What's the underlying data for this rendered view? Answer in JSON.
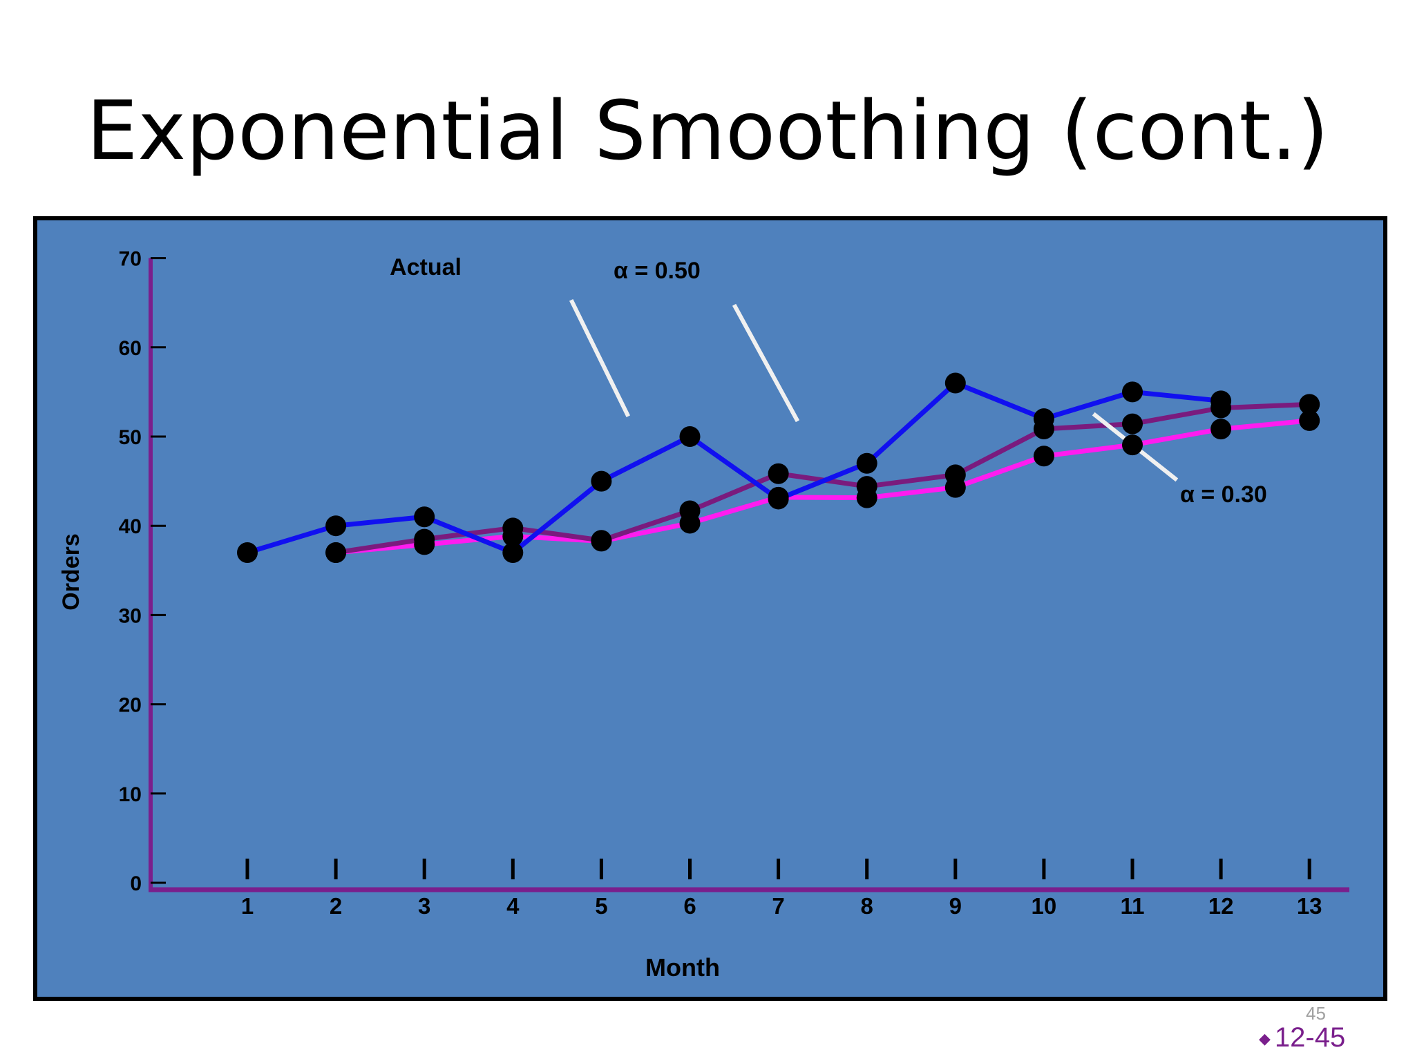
{
  "slide": {
    "title": "Exponential Smoothing (cont.)",
    "page_number": "45",
    "code": "12-45"
  },
  "colors": {
    "background": "#4f81bd",
    "frame": "#000000",
    "axis": "#7a1f8c",
    "actual": "#1010f0",
    "alpha_050": "#7a1b7e",
    "alpha_030": "#ff1cf0",
    "pointer": "#f0f0f0",
    "marker": "#000000"
  },
  "chart_data": {
    "type": "line",
    "title": "",
    "xlabel": "Month",
    "ylabel": "Orders",
    "xlim": [
      0,
      13
    ],
    "ylim": [
      0,
      70
    ],
    "x_ticks": [
      1,
      2,
      3,
      4,
      5,
      6,
      7,
      8,
      9,
      10,
      11,
      12,
      13
    ],
    "y_ticks": [
      0,
      10,
      20,
      30,
      40,
      50,
      60,
      70
    ],
    "grid": false,
    "series": [
      {
        "key": "actual",
        "x": [
          1,
          2,
          3,
          4,
          5,
          6,
          7,
          8,
          9,
          10,
          11,
          12
        ],
        "y": [
          37,
          40,
          41,
          37,
          45,
          50,
          43,
          47,
          56,
          52,
          55,
          54
        ]
      },
      {
        "key": "alpha_050",
        "x": [
          2,
          3,
          4,
          5,
          6,
          7,
          8,
          9,
          10,
          11,
          12,
          13
        ],
        "y": [
          37.0,
          38.5,
          39.75,
          38.37,
          41.68,
          45.84,
          44.42,
          45.71,
          50.85,
          51.42,
          53.21,
          53.61
        ]
      },
      {
        "key": "alpha_030",
        "x": [
          2,
          3,
          4,
          5,
          6,
          7,
          8,
          9,
          10,
          11,
          12,
          13
        ],
        "y": [
          37.0,
          37.9,
          38.83,
          38.28,
          40.29,
          43.2,
          43.14,
          44.3,
          47.81,
          49.06,
          50.84,
          51.79
        ]
      }
    ],
    "annotations": [
      {
        "text": "Actual",
        "target": "actual"
      },
      {
        "text": "α = 0.50",
        "target": "alpha_050"
      },
      {
        "text": "α = 0.30",
        "target": "alpha_030"
      }
    ]
  }
}
